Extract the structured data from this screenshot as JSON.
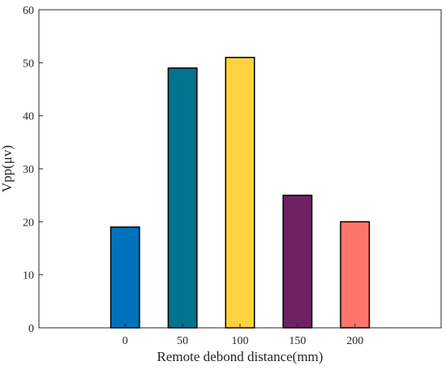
{
  "chart_data": {
    "type": "bar",
    "categories": [
      "0",
      "50",
      "100",
      "150",
      "200"
    ],
    "values": [
      19,
      49,
      51,
      25,
      20
    ],
    "colors": [
      "#0072BD",
      "#00748F",
      "#FFD23F",
      "#6F2163",
      "#FF756B"
    ],
    "xlabel": "Remote debond distance(mm)",
    "ylabel": "Vpp(μv)",
    "ylim": [
      0,
      60
    ],
    "yticks": [
      "0",
      "10",
      "20",
      "30",
      "40",
      "50",
      "60"
    ],
    "grid": false,
    "legend": "none"
  }
}
